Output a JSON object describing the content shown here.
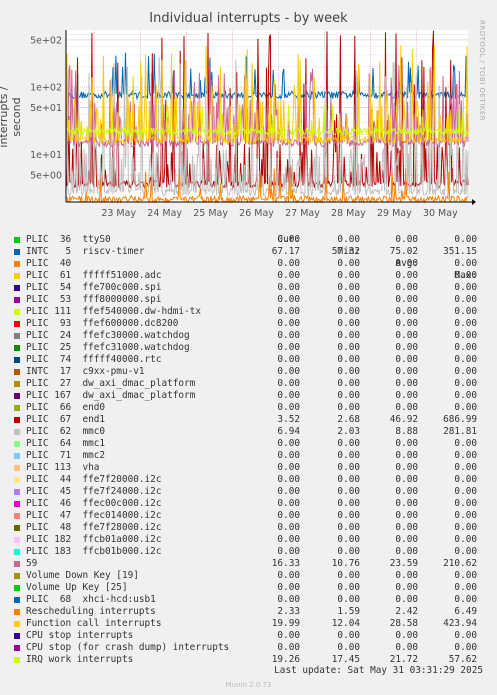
{
  "chart_data": {
    "type": "line",
    "title": "Individual interrupts - by week",
    "ylabel": "interrupts / second",
    "yscale": "log",
    "ylim": [
      2,
      700
    ],
    "yticks": [
      {
        "label": "5e+00",
        "value": 5
      },
      {
        "label": "1e+01",
        "value": 10
      },
      {
        "label": "5e+01",
        "value": 50
      },
      {
        "label": "1e+02",
        "value": 100
      },
      {
        "label": "5e+02",
        "value": 500
      }
    ],
    "xlim": [
      "2025-05-22 09:00",
      "2025-05-31 03:00"
    ],
    "xticks": [
      {
        "label": "23 May",
        "value": "2025-05-23 00:00"
      },
      {
        "label": "24 May",
        "value": "2025-05-24 00:00"
      },
      {
        "label": "25 May",
        "value": "2025-05-25 00:00"
      },
      {
        "label": "26 May",
        "value": "2025-05-26 00:00"
      },
      {
        "label": "27 May",
        "value": "2025-05-27 00:00"
      },
      {
        "label": "28 May",
        "value": "2025-05-28 00:00"
      },
      {
        "label": "29 May",
        "value": "2025-05-29 00:00"
      },
      {
        "label": "30 May",
        "value": "2025-05-30 00:00"
      }
    ],
    "columns": [
      "Cur:",
      "Min:",
      "Avg:",
      "Max:"
    ],
    "series": [
      {
        "name": "PLIC  36  ttyS0",
        "color": "#00cc00",
        "cur": "0.00",
        "min": "0.00",
        "avg": "0.00",
        "max": "0.00"
      },
      {
        "name": "INTC   5  riscv-timer",
        "color": "#0066b3",
        "cur": "67.17",
        "min": "57.32",
        "avg": "75.02",
        "max": "351.15"
      },
      {
        "name": "PLIC  40",
        "color": "#ff8000",
        "cur": "0.00",
        "min": "0.00",
        "avg": "0.00",
        "max": "0.00"
      },
      {
        "name": "PLIC  61  fffff51000.adc",
        "color": "#ffcc00",
        "cur": "0.00",
        "min": "0.00",
        "avg": "0.00",
        "max": "0.00"
      },
      {
        "name": "PLIC  54  ffe700c000.spi",
        "color": "#330099",
        "cur": "0.00",
        "min": "0.00",
        "avg": "0.00",
        "max": "0.00"
      },
      {
        "name": "PLIC  53  fff8000000.spi",
        "color": "#990099",
        "cur": "0.00",
        "min": "0.00",
        "avg": "0.00",
        "max": "0.00"
      },
      {
        "name": "PLIC 111  ffef540000.dw-hdmi-tx",
        "color": "#ccff00",
        "cur": "0.00",
        "min": "0.00",
        "avg": "0.00",
        "max": "0.00"
      },
      {
        "name": "PLIC  93  ffef600000.dc8200",
        "color": "#ff0000",
        "cur": "0.00",
        "min": "0.00",
        "avg": "0.00",
        "max": "0.00"
      },
      {
        "name": "PLIC  24  ffefc30000.watchdog",
        "color": "#808080",
        "cur": "0.00",
        "min": "0.00",
        "avg": "0.00",
        "max": "0.00"
      },
      {
        "name": "PLIC  25  ffefc31000.watchdog",
        "color": "#008f00",
        "cur": "0.00",
        "min": "0.00",
        "avg": "0.00",
        "max": "0.00"
      },
      {
        "name": "PLIC  74  fffff40000.rtc",
        "color": "#00487d",
        "cur": "0.00",
        "min": "0.00",
        "avg": "0.00",
        "max": "0.00"
      },
      {
        "name": "INTC  17  c9xx-pmu-v1",
        "color": "#b35a00",
        "cur": "0.00",
        "min": "0.00",
        "avg": "0.00",
        "max": "0.00"
      },
      {
        "name": "PLIC  27  dw_axi_dmac_platform",
        "color": "#b38f00",
        "cur": "0.00",
        "min": "0.00",
        "avg": "0.00",
        "max": "0.00"
      },
      {
        "name": "PLIC 167  dw_axi_dmac_platform",
        "color": "#6b006b",
        "cur": "0.00",
        "min": "0.00",
        "avg": "0.00",
        "max": "0.00"
      },
      {
        "name": "PLIC  66  end0",
        "color": "#8fb300",
        "cur": "0.00",
        "min": "0.00",
        "avg": "0.00",
        "max": "0.00"
      },
      {
        "name": "PLIC  67  end1",
        "color": "#b30000",
        "cur": "3.52",
        "min": "2.68",
        "avg": "46.92",
        "max": "686.99"
      },
      {
        "name": "PLIC  62  mmc0",
        "color": "#bebebe",
        "cur": "6.94",
        "min": "2.03",
        "avg": "8.88",
        "max": "281.81"
      },
      {
        "name": "PLIC  64  mmc1",
        "color": "#80ff80",
        "cur": "0.00",
        "min": "0.00",
        "avg": "0.00",
        "max": "0.00"
      },
      {
        "name": "PLIC  71  mmc2",
        "color": "#80c9ff",
        "cur": "0.00",
        "min": "0.00",
        "avg": "0.00",
        "max": "0.00"
      },
      {
        "name": "PLIC 113  vha",
        "color": "#ffc080",
        "cur": "0.00",
        "min": "0.00",
        "avg": "0.00",
        "max": "0.00"
      },
      {
        "name": "PLIC  44  ffe7f20000.i2c",
        "color": "#ffe680",
        "cur": "0.00",
        "min": "0.00",
        "avg": "0.00",
        "max": "0.00"
      },
      {
        "name": "PLIC  45  ffe7f24000.i2c",
        "color": "#aa80ff",
        "cur": "0.00",
        "min": "0.00",
        "avg": "0.00",
        "max": "0.00"
      },
      {
        "name": "PLIC  46  ffec00c000.i2c",
        "color": "#ee00cc",
        "cur": "0.00",
        "min": "0.00",
        "avg": "0.00",
        "max": "0.00"
      },
      {
        "name": "PLIC  47  ffec014000.i2c",
        "color": "#ff8080",
        "cur": "0.00",
        "min": "0.00",
        "avg": "0.00",
        "max": "0.00"
      },
      {
        "name": "PLIC  48  ffe7f28000.i2c",
        "color": "#666600",
        "cur": "0.00",
        "min": "0.00",
        "avg": "0.00",
        "max": "0.00"
      },
      {
        "name": "PLIC 182  ffcb01a000.i2c",
        "color": "#ffbfff",
        "cur": "0.00",
        "min": "0.00",
        "avg": "0.00",
        "max": "0.00"
      },
      {
        "name": "PLIC 183  ffcb01b000.i2c",
        "color": "#00ffcc",
        "cur": "0.00",
        "min": "0.00",
        "avg": "0.00",
        "max": "0.00"
      },
      {
        "name": "59",
        "color": "#cc6699",
        "cur": "16.33",
        "min": "10.76",
        "avg": "23.59",
        "max": "210.62"
      },
      {
        "name": "Volume Down Key [19]",
        "color": "#999900",
        "cur": "0.00",
        "min": "0.00",
        "avg": "0.00",
        "max": "0.00"
      },
      {
        "name": "Volume Up Key [25]",
        "color": "#00cc00",
        "cur": "0.00",
        "min": "0.00",
        "avg": "0.00",
        "max": "0.00"
      },
      {
        "name": "PLIC  68  xhci-hcd:usb1",
        "color": "#0066b3",
        "cur": "0.00",
        "min": "0.00",
        "avg": "0.00",
        "max": "0.00"
      },
      {
        "name": "Rescheduling interrupts",
        "color": "#ff8000",
        "cur": "2.33",
        "min": "1.59",
        "avg": "2.42",
        "max": "6.49"
      },
      {
        "name": "Function call interrupts",
        "color": "#ffcc00",
        "cur": "19.99",
        "min": "12.04",
        "avg": "28.58",
        "max": "423.94"
      },
      {
        "name": "CPU stop interrupts",
        "color": "#330099",
        "cur": "0.00",
        "min": "0.00",
        "avg": "0.00",
        "max": "0.00"
      },
      {
        "name": "CPU stop (for crash dump) interrupts",
        "color": "#990099",
        "cur": "0.00",
        "min": "0.00",
        "avg": "0.00",
        "max": "0.00"
      },
      {
        "name": "IRQ work interrupts",
        "color": "#ccff00",
        "cur": "19.26",
        "min": "17.45",
        "avg": "21.72",
        "max": "57.62"
      }
    ]
  },
  "footer": {
    "last_update": "Last update: Sat May 31 03:31:29 2025",
    "version": "Munin 2.0.73"
  },
  "side_credit": "RRDTOOL / TOBI OETIKER"
}
